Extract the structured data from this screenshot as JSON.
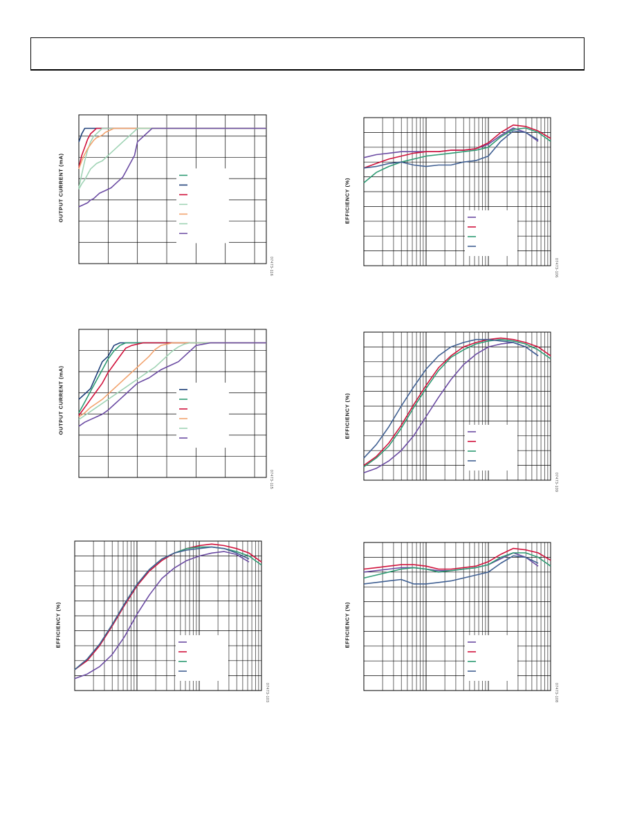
{
  "colors": {
    "navy": "#1d3e78",
    "teal": "#2c9a72",
    "red": "#d0103a",
    "orange": "#f2a36e",
    "ltgreen": "#9fd3b4",
    "purple": "#6a4aa2",
    "steel": "#3f5f92"
  },
  "chart_data": [
    {
      "id": "c1",
      "type": "line",
      "scale": "linear",
      "ylabel": "OUTPUT CURRENT (mA)",
      "figure_id": "07473-116",
      "grid": true,
      "legend_position": "center-right",
      "x": [
        0,
        0.1,
        0.2,
        0.3,
        0.4,
        0.5,
        0.6,
        0.7,
        0.8,
        0.9,
        1.0,
        1.1,
        1.2,
        1.3,
        1.4,
        1.5,
        1.6,
        1.7,
        1.8,
        1.9,
        2.0,
        2.5,
        3.0,
        3.5,
        4.0,
        4.5,
        5.0,
        5.5,
        6.0,
        6.4
      ],
      "series": [
        {
          "color": "teal",
          "values": [
            null,
            null,
            null,
            null,
            null,
            null,
            null,
            null,
            null,
            null,
            null,
            null,
            null,
            null,
            null,
            null,
            null,
            null,
            null,
            null,
            null,
            null,
            null,
            null,
            null,
            null,
            null,
            null,
            null,
            null
          ]
        },
        {
          "color": "navy",
          "values": [
            90,
            96,
            100,
            100,
            100,
            100,
            100,
            100,
            100,
            100,
            100,
            100,
            100,
            100,
            100,
            100,
            100,
            100,
            100,
            100,
            100,
            100,
            100,
            100,
            100,
            100,
            100,
            100,
            100,
            100
          ]
        },
        {
          "color": "red",
          "values": [
            71,
            80,
            86,
            92,
            96,
            98,
            100,
            100,
            100,
            100,
            100,
            100,
            100,
            100,
            100,
            100,
            100,
            100,
            100,
            100,
            100,
            100,
            100,
            100,
            100,
            100,
            100,
            100,
            100,
            100
          ]
        },
        {
          "color": "ltgreen",
          "values": [
            56,
            66,
            76,
            84,
            90,
            94,
            96,
            98,
            100,
            100,
            100,
            100,
            100,
            100,
            100,
            100,
            100,
            100,
            100,
            100,
            100,
            100,
            100,
            100,
            100,
            100,
            100,
            100,
            100,
            100
          ]
        },
        {
          "color": "orange",
          "values": [
            70,
            76,
            81,
            85,
            88,
            91,
            93,
            94,
            95,
            97,
            98,
            99,
            100,
            100,
            100,
            100,
            100,
            100,
            100,
            100,
            100,
            100,
            100,
            100,
            100,
            100,
            100,
            100,
            100,
            100
          ]
        },
        {
          "color": "ltgreen",
          "values": [
            55,
            59,
            62,
            66,
            70,
            72,
            74,
            75,
            76,
            78,
            80,
            82,
            84,
            86,
            88,
            90,
            92,
            94,
            96,
            98,
            100,
            100,
            100,
            100,
            100,
            100,
            100,
            100,
            100,
            100
          ]
        },
        {
          "color": "purple",
          "values": [
            42,
            43,
            44,
            45,
            47,
            48,
            50,
            52,
            53,
            54,
            55,
            56,
            58,
            60,
            62,
            64,
            68,
            72,
            76,
            80,
            90,
            100,
            100,
            100,
            100,
            100,
            100,
            100,
            100,
            100
          ]
        }
      ],
      "ylim": [
        0,
        110
      ],
      "xlim": [
        0,
        6.4
      ]
    },
    {
      "id": "c2",
      "type": "line",
      "scale": "linear",
      "ylabel": "OUTPUT CURRENT (mA)",
      "figure_id": "07473-115",
      "grid": true,
      "legend_position": "center-right",
      "x": [
        0,
        0.2,
        0.4,
        0.6,
        0.8,
        1.0,
        1.2,
        1.4,
        1.6,
        1.8,
        2.0,
        2.2,
        2.4,
        2.6,
        2.8,
        3.0,
        3.2,
        3.4,
        3.6,
        3.8,
        4.0,
        4.5,
        5.0,
        5.5,
        6.0,
        6.4
      ],
      "series": [
        {
          "color": "navy",
          "values": [
            58,
            62,
            66,
            76,
            86,
            90,
            98,
            100,
            100,
            100,
            100,
            100,
            100,
            100,
            100,
            100,
            100,
            100,
            100,
            100,
            100,
            100,
            100,
            100,
            100,
            100
          ]
        },
        {
          "color": "teal",
          "values": [
            48,
            56,
            64,
            72,
            80,
            88,
            94,
            98,
            100,
            100,
            100,
            100,
            100,
            100,
            100,
            100,
            100,
            100,
            100,
            100,
            100,
            100,
            100,
            100,
            100,
            100
          ]
        },
        {
          "color": "red",
          "values": [
            46,
            52,
            58,
            64,
            70,
            78,
            84,
            90,
            96,
            98,
            99,
            100,
            100,
            100,
            100,
            100,
            100,
            100,
            100,
            100,
            100,
            100,
            100,
            100,
            100,
            100
          ]
        },
        {
          "color": "orange",
          "values": [
            45,
            48,
            52,
            55,
            58,
            62,
            66,
            70,
            74,
            78,
            82,
            86,
            90,
            95,
            98,
            99,
            100,
            100,
            100,
            100,
            100,
            100,
            100,
            100,
            100,
            100
          ]
        },
        {
          "color": "ltgreen",
          "values": [
            43,
            46,
            49,
            52,
            55,
            58,
            61,
            64,
            67,
            70,
            73,
            76,
            79,
            82,
            86,
            90,
            94,
            97,
            99,
            100,
            100,
            100,
            100,
            100,
            100,
            100
          ]
        },
        {
          "color": "purple",
          "values": [
            38,
            41,
            43,
            45,
            47,
            50,
            54,
            58,
            62,
            66,
            70,
            72,
            74,
            77,
            80,
            82,
            84,
            86,
            90,
            94,
            98,
            100,
            100,
            100,
            100,
            100
          ]
        }
      ],
      "ylim": [
        0,
        110
      ],
      "xlim": [
        0,
        6.4
      ]
    },
    {
      "id": "c3",
      "type": "line",
      "scale": "log",
      "ylabel": "EFFICIENCY (%)",
      "figure_id": "07473-103",
      "grid": true,
      "legend_position": "lower-right",
      "x_decades": 3,
      "x": [
        0,
        0.2,
        0.4,
        0.6,
        0.8,
        1.0,
        1.2,
        1.4,
        1.6,
        1.8,
        2.0,
        2.2,
        2.4,
        2.6,
        2.8,
        3.0
      ],
      "series": [
        {
          "color": "purple",
          "values": [
            8,
            11,
            16,
            24,
            36,
            51,
            64,
            75,
            82,
            87,
            90,
            92,
            93,
            91,
            86,
            null
          ]
        },
        {
          "color": "red",
          "values": [
            14,
            20,
            30,
            43,
            57,
            70,
            80,
            87,
            92,
            95,
            97,
            98,
            97,
            95,
            92,
            86
          ]
        },
        {
          "color": "teal",
          "values": [
            14,
            21,
            31,
            44,
            58,
            71,
            81,
            88,
            92,
            95,
            96,
            96,
            95,
            93,
            90,
            84
          ]
        },
        {
          "color": "steel",
          "values": [
            14,
            21,
            31,
            44,
            58,
            71,
            81,
            88,
            92,
            94,
            95,
            96,
            95,
            92,
            88,
            null
          ]
        }
      ],
      "ylim": [
        0,
        100
      ]
    },
    {
      "id": "c4",
      "type": "line",
      "scale": "log",
      "ylabel": "EFFICIENCY (%)",
      "figure_id": "07473-106",
      "grid": true,
      "legend_position": "lower-right",
      "x_decades": 3,
      "x": [
        0,
        0.2,
        0.4,
        0.6,
        0.8,
        1.0,
        1.2,
        1.4,
        1.6,
        1.8,
        2.0,
        2.2,
        2.4,
        2.6,
        2.8,
        3.0
      ],
      "series": [
        {
          "color": "purple",
          "values": [
            73,
            75,
            76,
            77,
            77,
            77,
            77,
            78,
            78,
            79,
            82,
            88,
            93,
            90,
            84,
            null
          ]
        },
        {
          "color": "red",
          "values": [
            66,
            69,
            72,
            74,
            76,
            77,
            77,
            78,
            78,
            79,
            83,
            90,
            95,
            94,
            91,
            86
          ]
        },
        {
          "color": "teal",
          "values": [
            56,
            63,
            67,
            70,
            72,
            74,
            75,
            76,
            77,
            78,
            80,
            87,
            92,
            93,
            90,
            84
          ]
        },
        {
          "color": "steel",
          "values": [
            66,
            67,
            69,
            70,
            68,
            67,
            68,
            68,
            70,
            71,
            74,
            84,
            91,
            90,
            85,
            null
          ]
        }
      ],
      "ylim": [
        0,
        100
      ]
    },
    {
      "id": "c5",
      "type": "line",
      "scale": "log",
      "ylabel": "EFFICIENCY (%)",
      "figure_id": "07473-109",
      "grid": true,
      "legend_position": "lower-right",
      "x_decades": 3,
      "x": [
        0,
        0.2,
        0.4,
        0.6,
        0.8,
        1.0,
        1.2,
        1.4,
        1.6,
        1.8,
        2.0,
        2.2,
        2.4,
        2.6,
        2.8,
        3.0
      ],
      "series": [
        {
          "color": "purple",
          "values": [
            5,
            8,
            13,
            20,
            30,
            43,
            56,
            68,
            78,
            85,
            90,
            92,
            93,
            90,
            84,
            null
          ]
        },
        {
          "color": "red",
          "values": [
            10,
            16,
            25,
            37,
            51,
            64,
            76,
            84,
            90,
            93,
            95,
            96,
            95,
            93,
            90,
            84
          ]
        },
        {
          "color": "teal",
          "values": [
            9,
            15,
            23,
            35,
            49,
            62,
            74,
            83,
            88,
            92,
            94,
            95,
            94,
            92,
            88,
            82
          ]
        },
        {
          "color": "steel",
          "values": [
            15,
            24,
            36,
            50,
            63,
            75,
            84,
            90,
            93,
            95,
            95,
            94,
            93,
            90,
            84,
            null
          ]
        }
      ],
      "ylim": [
        0,
        100
      ]
    },
    {
      "id": "c6",
      "type": "line",
      "scale": "log",
      "ylabel": "EFFICIENCY (%)",
      "figure_id": "07473-108",
      "grid": true,
      "legend_position": "lower-right",
      "x_decades": 3,
      "x": [
        0,
        0.2,
        0.4,
        0.6,
        0.8,
        1.0,
        1.2,
        1.4,
        1.6,
        1.8,
        2.0,
        2.2,
        2.4,
        2.6,
        2.8,
        3.0
      ],
      "series": [
        {
          "color": "purple",
          "values": [
            80,
            81,
            82,
            83,
            83,
            82,
            81,
            81,
            82,
            83,
            85,
            89,
            93,
            90,
            84,
            null
          ]
        },
        {
          "color": "red",
          "values": [
            82,
            83,
            84,
            85,
            85,
            84,
            82,
            82,
            83,
            84,
            87,
            92,
            96,
            95,
            93,
            88
          ]
        },
        {
          "color": "teal",
          "values": [
            76,
            78,
            80,
            82,
            83,
            82,
            80,
            81,
            82,
            83,
            85,
            90,
            93,
            93,
            90,
            84
          ]
        },
        {
          "color": "steel",
          "values": [
            72,
            73,
            74,
            75,
            72,
            72,
            73,
            74,
            76,
            78,
            80,
            86,
            91,
            90,
            86,
            null
          ]
        }
      ],
      "ylim": [
        0,
        100
      ]
    }
  ]
}
